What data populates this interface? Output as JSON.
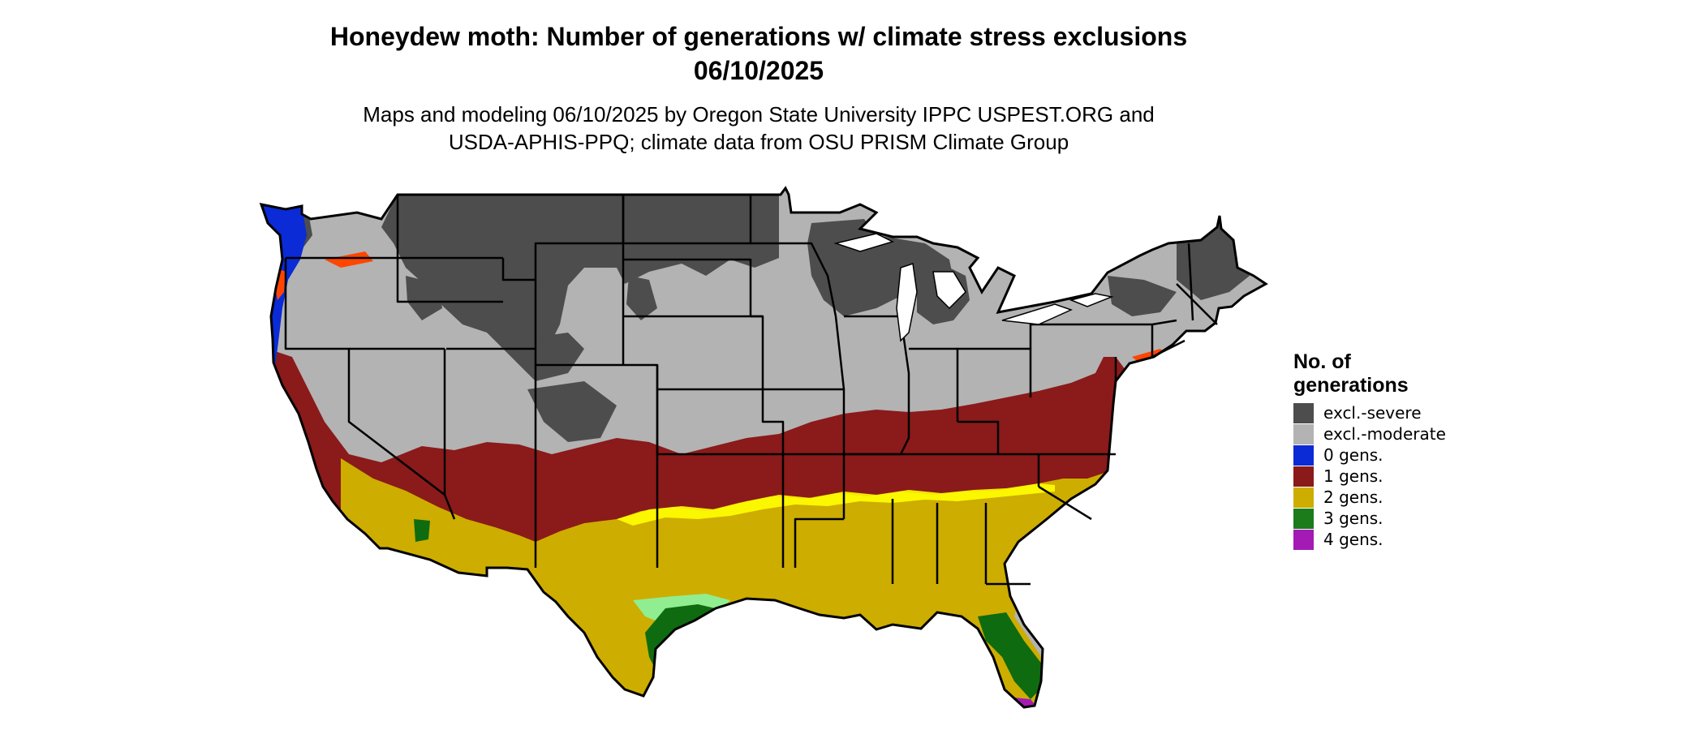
{
  "title": {
    "line1": "Honeydew moth: Number of generations w/ climate stress exclusions",
    "line2": "06/10/2025"
  },
  "subtitle": {
    "line1": "Maps and modeling 06/10/2025 by Oregon State University IPPC USPEST.ORG and",
    "line2": "USDA-APHIS-PPQ; climate data from OSU PRISM Climate Group"
  },
  "map": {
    "area": "Contiguous United States",
    "colors": {
      "excl_severe": "#4d4d4d",
      "excl_moderate": "#b3b3b3",
      "gens_0": "#0a2bd6",
      "gens_1": "#8b1a1a",
      "gens_2": "#cdad00",
      "gens_3": "#1c7c1c",
      "gens_4": "#a31bb4",
      "hot_zone": "#ffff00",
      "light_green": "#90ee90",
      "coastal_red": "#ff4500",
      "outline": "#000000",
      "water": "#ffffff"
    }
  },
  "legend": {
    "title_line1": "No. of",
    "title_line2": "generations",
    "items": [
      {
        "label": "excl.-severe",
        "color": "#4d4d4d"
      },
      {
        "label": "excl.-moderate",
        "color": "#b3b3b3"
      },
      {
        "label": "0 gens.",
        "color": "#0a2bd6"
      },
      {
        "label": "1 gens.",
        "color": "#8b1a1a"
      },
      {
        "label": "2 gens.",
        "color": "#cdad00"
      },
      {
        "label": "3 gens.",
        "color": "#1c7c1c"
      },
      {
        "label": "4 gens.",
        "color": "#a31bb4"
      }
    ]
  }
}
